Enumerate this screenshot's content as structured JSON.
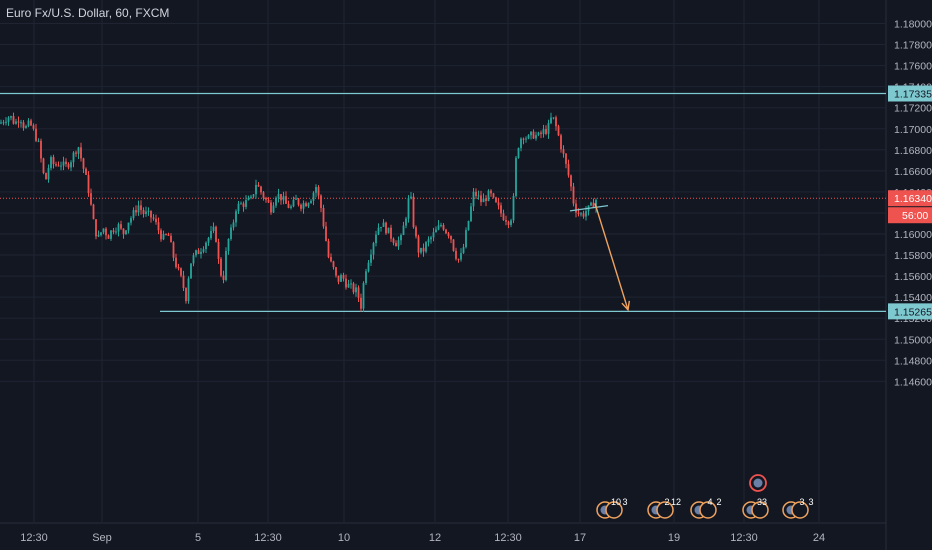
{
  "header": {
    "title": "Euro Fx/U.S. Dollar, 60, FXCM"
  },
  "colors": {
    "background": "#131722",
    "grid": "#1f2433",
    "axis_text": "#b2b5be",
    "up": "#26a69a",
    "down": "#ef5350",
    "hline": "#7ec8cf",
    "arrow": "#f0a35e",
    "current_price": "#ef5350"
  },
  "chart_data": {
    "type": "candlestick",
    "symbol": "Euro Fx/U.S. Dollar",
    "interval": "60",
    "source": "FXCM",
    "ylim": [
      1.144,
      1.182
    ],
    "y_ticks": [
      1.18,
      1.178,
      1.176,
      1.174,
      1.172,
      1.17,
      1.168,
      1.166,
      1.164,
      1.162,
      1.16,
      1.158,
      1.156,
      1.154,
      1.152,
      1.15,
      1.148,
      1.146
    ],
    "x_ticks": [
      "12:30",
      "Sep",
      "5",
      "12:30",
      "10",
      "12",
      "12:30",
      "17",
      "19",
      "12:30",
      "24"
    ],
    "close_path": [
      [
        0,
        1.1705
      ],
      [
        5,
        1.171
      ],
      [
        10,
        1.1712
      ],
      [
        15,
        1.1705
      ],
      [
        20,
        1.1712
      ],
      [
        25,
        1.17
      ],
      [
        30,
        1.1705
      ],
      [
        38,
        1.1688
      ],
      [
        45,
        1.1648
      ],
      [
        50,
        1.167
      ],
      [
        55,
        1.1665
      ],
      [
        60,
        1.1668
      ],
      [
        65,
        1.1663
      ],
      [
        72,
        1.1672
      ],
      [
        78,
        1.1685
      ],
      [
        82,
        1.1668
      ],
      [
        88,
        1.1645
      ],
      [
        94,
        1.1608
      ],
      [
        98,
        1.1595
      ],
      [
        103,
        1.1606
      ],
      [
        108,
        1.1598
      ],
      [
        113,
        1.1605
      ],
      [
        118,
        1.1608
      ],
      [
        123,
        1.16
      ],
      [
        128,
        1.1612
      ],
      [
        133,
        1.1618
      ],
      [
        138,
        1.1628
      ],
      [
        143,
        1.162
      ],
      [
        148,
        1.1618
      ],
      [
        153,
        1.1615
      ],
      [
        158,
        1.1605
      ],
      [
        163,
        1.1595
      ],
      [
        168,
        1.16
      ],
      [
        173,
        1.158
      ],
      [
        178,
        1.1565
      ],
      [
        182,
        1.1555
      ],
      [
        186,
        1.154
      ],
      [
        190,
        1.1572
      ],
      [
        195,
        1.158
      ],
      [
        200,
        1.1585
      ],
      [
        205,
        1.1592
      ],
      [
        210,
        1.1598
      ],
      [
        215,
        1.1605
      ],
      [
        219,
        1.157
      ],
      [
        223,
        1.1555
      ],
      [
        227,
        1.159
      ],
      [
        232,
        1.1605
      ],
      [
        236,
        1.1625
      ],
      [
        241,
        1.1628
      ],
      [
        246,
        1.163
      ],
      [
        251,
        1.1632
      ],
      [
        256,
        1.1648
      ],
      [
        261,
        1.164
      ],
      [
        266,
        1.1632
      ],
      [
        271,
        1.1625
      ],
      [
        276,
        1.1638
      ],
      [
        281,
        1.1635
      ],
      [
        286,
        1.1628
      ],
      [
        291,
        1.1625
      ],
      [
        296,
        1.1632
      ],
      [
        301,
        1.1628
      ],
      [
        306,
        1.163
      ],
      [
        311,
        1.1635
      ],
      [
        316,
        1.1645
      ],
      [
        321,
        1.1625
      ],
      [
        325,
        1.16
      ],
      [
        329,
        1.1575
      ],
      [
        333,
        1.1568
      ],
      [
        337,
        1.1555
      ],
      [
        342,
        1.156
      ],
      [
        347,
        1.1552
      ],
      [
        352,
        1.1548
      ],
      [
        357,
        1.1545
      ],
      [
        361,
        1.1532
      ],
      [
        365,
        1.1565
      ],
      [
        369,
        1.1578
      ],
      [
        373,
        1.1592
      ],
      [
        377,
        1.1605
      ],
      [
        381,
        1.161
      ],
      [
        386,
        1.1605
      ],
      [
        391,
        1.1598
      ],
      [
        396,
        1.1592
      ],
      [
        401,
        1.1595
      ],
      [
        406,
        1.1618
      ],
      [
        410,
        1.164
      ],
      [
        414,
        1.1605
      ],
      [
        418,
        1.1585
      ],
      [
        422,
        1.1582
      ],
      [
        426,
        1.159
      ],
      [
        430,
        1.1595
      ],
      [
        434,
        1.16
      ],
      [
        438,
        1.1605
      ],
      [
        442,
        1.161
      ],
      [
        446,
        1.1603
      ],
      [
        450,
        1.16
      ],
      [
        454,
        1.1585
      ],
      [
        458,
        1.1575
      ],
      [
        462,
        1.158
      ],
      [
        466,
        1.16
      ],
      [
        470,
        1.162
      ],
      [
        474,
        1.164
      ],
      [
        478,
        1.1635
      ],
      [
        482,
        1.163
      ],
      [
        486,
        1.1635
      ],
      [
        490,
        1.1638
      ],
      [
        494,
        1.163
      ],
      [
        498,
        1.1625
      ],
      [
        502,
        1.1618
      ],
      [
        506,
        1.1615
      ],
      [
        510,
        1.1612
      ],
      [
        513,
        1.1625
      ],
      [
        516,
        1.167
      ],
      [
        519,
        1.1688
      ],
      [
        523,
        1.1695
      ],
      [
        528,
        1.169
      ],
      [
        533,
        1.1695
      ],
      [
        538,
        1.1692
      ],
      [
        543,
        1.1697
      ],
      [
        548,
        1.17
      ],
      [
        552,
        1.1712
      ],
      [
        555,
        1.1705
      ],
      [
        558,
        1.1695
      ],
      [
        562,
        1.168
      ],
      [
        566,
        1.1665
      ],
      [
        570,
        1.165
      ],
      [
        574,
        1.1628
      ],
      [
        578,
        1.162
      ],
      [
        582,
        1.1618
      ],
      [
        586,
        1.1622
      ],
      [
        590,
        1.1624
      ],
      [
        594,
        1.163
      ],
      [
        597,
        1.1634
      ]
    ],
    "horizontal_levels": [
      1.17335,
      1.15265
    ],
    "current_price": 1.1634,
    "countdown": "56:00",
    "price_labels": [
      "1.17335",
      "1.16340",
      "1.15265"
    ],
    "trendline": [
      [
        570,
        1.1622
      ],
      [
        608,
        1.1627
      ]
    ],
    "projection_arrow": {
      "from": [
        595,
        1.1629
      ],
      "to": [
        628,
        1.1528
      ]
    },
    "events": [
      {
        "x": 612,
        "label": "10",
        "count": "3"
      },
      {
        "x": 663,
        "label": "2",
        "count": "12"
      },
      {
        "x": 706,
        "label": "4",
        "count": "2"
      },
      {
        "x": 758,
        "label": "33",
        "count": ""
      },
      {
        "x": 798,
        "label": "3",
        "count": "3"
      }
    ]
  }
}
